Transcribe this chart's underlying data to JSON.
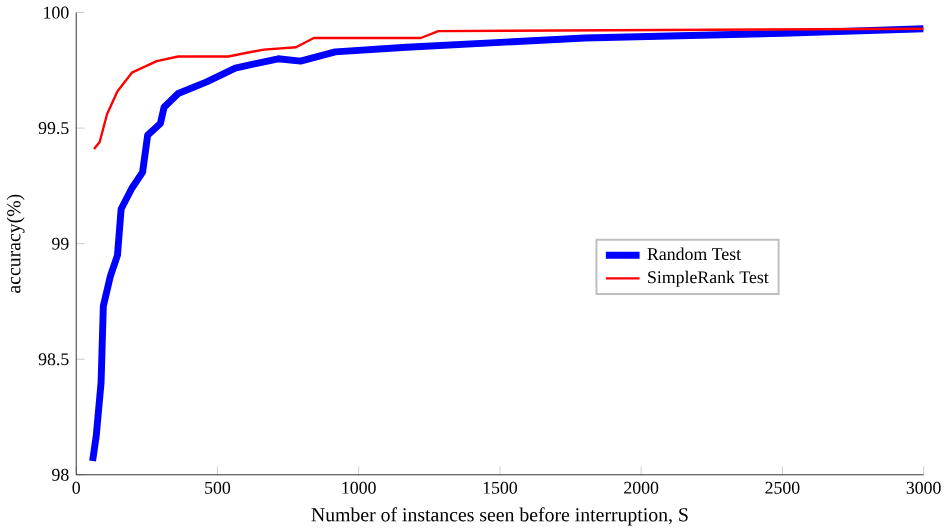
{
  "chart_data": {
    "type": "line",
    "xlabel": "Number of instances seen before interruption, S",
    "ylabel": "accuracy(%)",
    "xlim": [
      0,
      3000
    ],
    "ylim": [
      98,
      100
    ],
    "xticks": [
      0,
      500,
      1000,
      1500,
      2000,
      2500,
      3000
    ],
    "yticks": [
      98,
      98.5,
      99,
      99.5,
      100
    ],
    "grid": false,
    "legend": "right",
    "marker": "none",
    "line_style": "solid",
    "series": [
      {
        "name": "Random Test",
        "color": "#0000ff",
        "x": [
          58,
          71,
          88,
          96,
          121,
          146,
          159,
          197,
          235,
          253,
          298,
          311,
          361,
          462,
          563,
          715,
          794,
          917,
          1169,
          1800,
          2500,
          3000
        ],
        "values": [
          98.06,
          98.17,
          98.4,
          98.73,
          98.86,
          98.95,
          99.15,
          99.24,
          99.31,
          99.47,
          99.52,
          99.59,
          99.65,
          99.7,
          99.76,
          99.8,
          99.79,
          99.83,
          99.85,
          99.89,
          99.91,
          99.93
        ]
      },
      {
        "name": "SimpleRank Test",
        "color": "#ff0000",
        "x": [
          63,
          83,
          109,
          146,
          197,
          285,
          361,
          538,
          664,
          778,
          841,
          1220,
          1282,
          3000
        ],
        "values": [
          99.41,
          99.44,
          99.56,
          99.66,
          99.74,
          99.79,
          99.81,
          99.81,
          99.84,
          99.85,
          99.89,
          99.89,
          99.92,
          99.93
        ]
      }
    ]
  }
}
